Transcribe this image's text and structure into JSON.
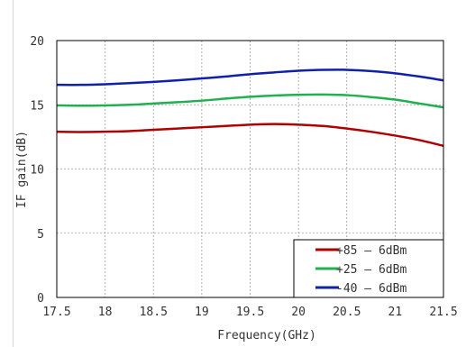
{
  "chart_data": {
    "type": "line",
    "title": "",
    "xlabel": "Frequency(GHz)",
    "ylabel": "IF gain(dB)",
    "xlim": [
      17.5,
      21.5
    ],
    "ylim": [
      0,
      20
    ],
    "x_ticks": [
      17.5,
      18,
      18.5,
      19,
      19.5,
      20,
      20.5,
      21,
      21.5
    ],
    "x_tick_labels": [
      "17.5",
      "18",
      "18.5",
      "19",
      "19.5",
      "20",
      "20.5",
      "21",
      "21.5"
    ],
    "y_ticks": [
      0,
      5,
      10,
      15,
      20
    ],
    "y_tick_labels": [
      "0",
      "5",
      "10",
      "15",
      "20"
    ],
    "x_grid": "vertical dashed at ticks",
    "y_grid": "horizontal at ticks",
    "legend_position": "bottom-right",
    "series": [
      {
        "name": "+85 – 6dBm",
        "color": "#b00000",
        "x": [
          17.5,
          17.75,
          18,
          18.25,
          18.5,
          18.75,
          19,
          19.25,
          19.5,
          19.75,
          20,
          20.25,
          20.5,
          20.75,
          21,
          21.25,
          21.5
        ],
        "y": [
          12.9,
          12.88,
          12.9,
          12.95,
          13.05,
          13.15,
          13.25,
          13.35,
          13.45,
          13.5,
          13.45,
          13.35,
          13.15,
          12.9,
          12.6,
          12.25,
          11.8
        ]
      },
      {
        "name": "+25 – 6dBm",
        "color": "#20b050",
        "x": [
          17.5,
          17.75,
          18,
          18.25,
          18.5,
          18.75,
          19,
          19.25,
          19.5,
          19.75,
          20,
          20.25,
          20.5,
          20.75,
          21,
          21.25,
          21.5
        ],
        "y": [
          14.95,
          14.93,
          14.95,
          15.0,
          15.1,
          15.2,
          15.32,
          15.48,
          15.62,
          15.72,
          15.78,
          15.8,
          15.75,
          15.6,
          15.4,
          15.1,
          14.8
        ]
      },
      {
        "name": "-40 – 6dBm",
        "color": "#1020a8",
        "x": [
          17.5,
          17.75,
          18,
          18.25,
          18.5,
          18.75,
          19,
          19.25,
          19.5,
          19.75,
          20,
          20.25,
          20.5,
          20.75,
          21,
          21.25,
          21.5
        ],
        "y": [
          16.55,
          16.55,
          16.6,
          16.68,
          16.78,
          16.9,
          17.05,
          17.2,
          17.38,
          17.52,
          17.65,
          17.72,
          17.72,
          17.62,
          17.45,
          17.2,
          16.9
        ]
      }
    ]
  }
}
